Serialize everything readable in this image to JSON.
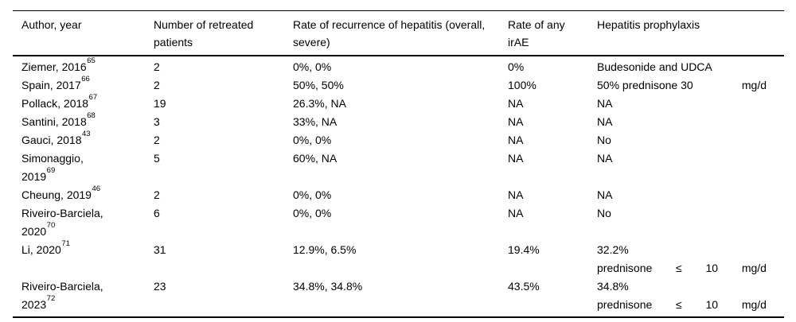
{
  "page": {
    "background": "#ffffff",
    "text_color": "#000000",
    "rule_color": "#000000"
  },
  "table": {
    "headers": [
      "Author, year",
      "Number of retreated patients",
      "Rate of recurrence of hepatitis (overall, severe)",
      "Rate of any irAE",
      "Hepatitis prophylaxis"
    ],
    "rows": [
      {
        "author_lines": [
          {
            "text": "Ziemer, 2016",
            "sup": "65"
          }
        ],
        "patients": "2",
        "recurrence": "0%, 0%",
        "irae": "0%",
        "prophylaxis_lines": [
          {
            "text": "Budesonide and UDCA"
          }
        ]
      },
      {
        "author_lines": [
          {
            "text": "Spain, 2017",
            "sup": "66"
          }
        ],
        "patients": "2",
        "recurrence": "50%, 50%",
        "irae": "100%",
        "prophylaxis_lines": [
          {
            "parts": [
              "50% prednisone 30",
              "mg/d"
            ]
          }
        ]
      },
      {
        "author_lines": [
          {
            "text": "Pollack, 2018",
            "sup": "67"
          }
        ],
        "patients": "19",
        "recurrence": "26.3%, NA",
        "irae": "NA",
        "prophylaxis_lines": [
          {
            "text": "NA"
          }
        ]
      },
      {
        "author_lines": [
          {
            "text": "Santini, 2018",
            "sup": "68"
          }
        ],
        "patients": "3",
        "recurrence": "33%, NA",
        "irae": "NA",
        "prophylaxis_lines": [
          {
            "text": "NA"
          }
        ]
      },
      {
        "author_lines": [
          {
            "text": "Gauci, 2018",
            "sup": "43"
          }
        ],
        "patients": "2",
        "recurrence": "0%, 0%",
        "irae": "NA",
        "prophylaxis_lines": [
          {
            "text": "No"
          }
        ]
      },
      {
        "author_lines": [
          {
            "text": "Simonaggio,"
          },
          {
            "text": "2019",
            "sup": "69"
          }
        ],
        "patients": "5",
        "recurrence": "60%, NA",
        "irae": "NA",
        "prophylaxis_lines": [
          {
            "text": "NA"
          }
        ]
      },
      {
        "author_lines": [
          {
            "text": "Cheung, 2019",
            "sup": "46"
          }
        ],
        "patients": "2",
        "recurrence": "0%, 0%",
        "irae": "NA",
        "prophylaxis_lines": [
          {
            "text": "NA"
          }
        ]
      },
      {
        "author_lines": [
          {
            "text": "Riveiro-Barciela,"
          },
          {
            "text": "2020",
            "sup": "70"
          }
        ],
        "patients": "6",
        "recurrence": "0%, 0%",
        "irae": "NA",
        "prophylaxis_lines": [
          {
            "text": "No"
          }
        ]
      },
      {
        "author_lines": [
          {
            "text": "Li, 2020",
            "sup": "71"
          }
        ],
        "patients": "31",
        "recurrence": "12.9%, 6.5%",
        "irae": "19.4%",
        "prophylaxis_lines": [
          {
            "text": "32.2%"
          },
          {
            "parts": [
              "prednisone",
              "≤",
              "10",
              "mg/d"
            ]
          }
        ]
      },
      {
        "author_lines": [
          {
            "text": "Riveiro-Barciela,"
          },
          {
            "text": "2023",
            "sup": "72"
          }
        ],
        "patients": "23",
        "recurrence": "34.8%, 34.8%",
        "irae": "43.5%",
        "prophylaxis_lines": [
          {
            "text": "34.8%"
          },
          {
            "parts": [
              "prednisone",
              "≤",
              "10",
              "mg/d"
            ]
          }
        ]
      }
    ]
  }
}
